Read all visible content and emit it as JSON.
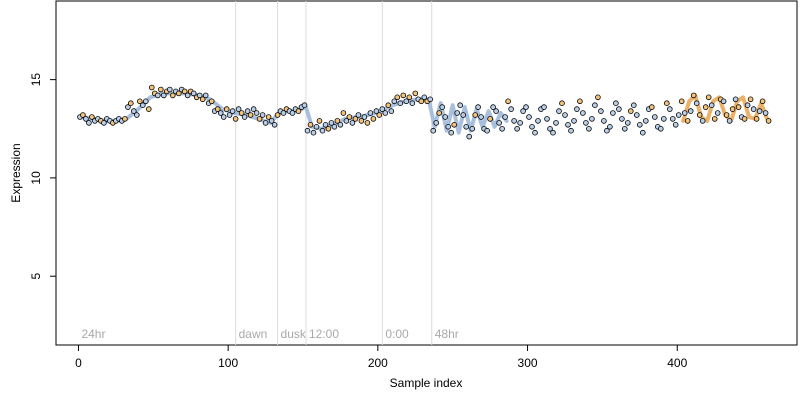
{
  "chart_data": {
    "type": "scatter",
    "title": "",
    "xlabel": "Sample index",
    "ylabel": "Expression",
    "xlim": [
      -15,
      480
    ],
    "ylim": [
      1.5,
      19
    ],
    "x_ticks": [
      0,
      100,
      200,
      300,
      400
    ],
    "y_ticks": [
      5,
      10,
      15
    ],
    "grid": false,
    "legend": "none",
    "colors": {
      "point_outline": "#000000",
      "point_fill_blue": "#b9cfe8",
      "point_fill_orange": "#f5c27a",
      "fit_line_blue": "#9fb8d9",
      "fit_line_orange": "#e8a95a",
      "annotation_line": "#dcdcdc",
      "annotation_text": "#a9a9a9"
    },
    "annotations": [
      {
        "x": 0,
        "label": "24hr",
        "line": false
      },
      {
        "x": 105,
        "label": "dawn",
        "line": true
      },
      {
        "x": 133,
        "label": "dusk",
        "line": true
      },
      {
        "x": 152,
        "label": "12:00",
        "line": true
      },
      {
        "x": 203,
        "label": "0:00",
        "line": true
      },
      {
        "x": 236,
        "label": "48hr",
        "line": true
      }
    ],
    "series": [
      {
        "label": "fitted-blue",
        "kind": "line",
        "color": "#9fb8d9",
        "x": [
          2,
          10,
          18,
          25,
          32,
          40,
          48,
          56,
          64,
          72,
          80,
          88,
          96,
          104,
          112,
          120,
          128,
          134,
          140,
          146,
          152,
          156,
          162,
          170,
          178,
          186,
          194,
          202,
          210,
          218,
          226,
          234,
          238,
          242,
          246,
          250,
          254,
          258,
          262,
          266,
          270,
          274,
          278,
          282,
          286
        ],
        "y": [
          13.1,
          13.0,
          12.9,
          12.9,
          13.0,
          13.5,
          14.1,
          14.3,
          14.3,
          14.3,
          14.2,
          14.0,
          13.5,
          13.3,
          13.2,
          13.0,
          12.8,
          13.3,
          13.4,
          13.4,
          13.6,
          12.6,
          12.5,
          12.7,
          13.0,
          13.1,
          13.2,
          13.4,
          13.7,
          13.9,
          14.0,
          14.0,
          12.6,
          13.8,
          12.4,
          13.7,
          12.3,
          13.6,
          12.4,
          13.5,
          12.6,
          13.4,
          12.6,
          13.3,
          12.9
        ]
      },
      {
        "label": "fitted-orange",
        "kind": "line",
        "color": "#e8a95a",
        "x": [
          404,
          408,
          412,
          416,
          420,
          424,
          428,
          432,
          436,
          440,
          444,
          448,
          452,
          456,
          460
        ],
        "y": [
          12.9,
          13.9,
          14.2,
          13.1,
          12.9,
          13.9,
          14.1,
          13.2,
          12.9,
          13.9,
          14.1,
          13.1,
          13.0,
          13.8,
          13.0
        ]
      }
    ],
    "points": [
      {
        "x": 1,
        "y": 13.1,
        "c": "b"
      },
      {
        "x": 3,
        "y": 13.2,
        "c": "o"
      },
      {
        "x": 5,
        "y": 13.0,
        "c": "b"
      },
      {
        "x": 7,
        "y": 12.8,
        "c": "b"
      },
      {
        "x": 9,
        "y": 13.1,
        "c": "o"
      },
      {
        "x": 11,
        "y": 12.9,
        "c": "b"
      },
      {
        "x": 13,
        "y": 13.0,
        "c": "b"
      },
      {
        "x": 15,
        "y": 12.9,
        "c": "o"
      },
      {
        "x": 17,
        "y": 12.8,
        "c": "b"
      },
      {
        "x": 19,
        "y": 13.0,
        "c": "b"
      },
      {
        "x": 21,
        "y": 12.9,
        "c": "b"
      },
      {
        "x": 23,
        "y": 12.8,
        "c": "o"
      },
      {
        "x": 25,
        "y": 12.9,
        "c": "b"
      },
      {
        "x": 27,
        "y": 13.0,
        "c": "b"
      },
      {
        "x": 29,
        "y": 12.9,
        "c": "b"
      },
      {
        "x": 31,
        "y": 13.0,
        "c": "o"
      },
      {
        "x": 33,
        "y": 13.6,
        "c": "b"
      },
      {
        "x": 35,
        "y": 13.8,
        "c": "o"
      },
      {
        "x": 37,
        "y": 13.4,
        "c": "b"
      },
      {
        "x": 39,
        "y": 13.2,
        "c": "b"
      },
      {
        "x": 41,
        "y": 13.9,
        "c": "o"
      },
      {
        "x": 43,
        "y": 13.7,
        "c": "b"
      },
      {
        "x": 45,
        "y": 13.9,
        "c": "b"
      },
      {
        "x": 47,
        "y": 13.5,
        "c": "o"
      },
      {
        "x": 49,
        "y": 14.6,
        "c": "o"
      },
      {
        "x": 51,
        "y": 14.3,
        "c": "o"
      },
      {
        "x": 53,
        "y": 14.2,
        "c": "b"
      },
      {
        "x": 55,
        "y": 14.5,
        "c": "o"
      },
      {
        "x": 57,
        "y": 14.2,
        "c": "b"
      },
      {
        "x": 59,
        "y": 14.4,
        "c": "o"
      },
      {
        "x": 61,
        "y": 14.5,
        "c": "b"
      },
      {
        "x": 63,
        "y": 14.2,
        "c": "o"
      },
      {
        "x": 65,
        "y": 14.4,
        "c": "b"
      },
      {
        "x": 67,
        "y": 14.3,
        "c": "o"
      },
      {
        "x": 69,
        "y": 14.5,
        "c": "b"
      },
      {
        "x": 71,
        "y": 14.4,
        "c": "o"
      },
      {
        "x": 73,
        "y": 14.2,
        "c": "b"
      },
      {
        "x": 75,
        "y": 14.4,
        "c": "o"
      },
      {
        "x": 77,
        "y": 14.3,
        "c": "b"
      },
      {
        "x": 79,
        "y": 14.1,
        "c": "o"
      },
      {
        "x": 81,
        "y": 14.2,
        "c": "b"
      },
      {
        "x": 83,
        "y": 14.0,
        "c": "o"
      },
      {
        "x": 85,
        "y": 14.2,
        "c": "b"
      },
      {
        "x": 87,
        "y": 13.8,
        "c": "b"
      },
      {
        "x": 89,
        "y": 13.9,
        "c": "o"
      },
      {
        "x": 91,
        "y": 13.4,
        "c": "b"
      },
      {
        "x": 93,
        "y": 13.5,
        "c": "o"
      },
      {
        "x": 95,
        "y": 13.3,
        "c": "b"
      },
      {
        "x": 97,
        "y": 13.1,
        "c": "b"
      },
      {
        "x": 99,
        "y": 13.5,
        "c": "o"
      },
      {
        "x": 101,
        "y": 13.2,
        "c": "b"
      },
      {
        "x": 103,
        "y": 13.4,
        "c": "b"
      },
      {
        "x": 105,
        "y": 13.0,
        "c": "o"
      },
      {
        "x": 107,
        "y": 13.5,
        "c": "b"
      },
      {
        "x": 109,
        "y": 13.3,
        "c": "o"
      },
      {
        "x": 111,
        "y": 13.1,
        "c": "b"
      },
      {
        "x": 113,
        "y": 13.4,
        "c": "b"
      },
      {
        "x": 115,
        "y": 13.2,
        "c": "o"
      },
      {
        "x": 117,
        "y": 13.5,
        "c": "b"
      },
      {
        "x": 119,
        "y": 13.3,
        "c": "b"
      },
      {
        "x": 121,
        "y": 13.0,
        "c": "o"
      },
      {
        "x": 123,
        "y": 13.2,
        "c": "b"
      },
      {
        "x": 125,
        "y": 12.8,
        "c": "b"
      },
      {
        "x": 127,
        "y": 13.1,
        "c": "o"
      },
      {
        "x": 129,
        "y": 12.9,
        "c": "b"
      },
      {
        "x": 131,
        "y": 12.7,
        "c": "b"
      },
      {
        "x": 133,
        "y": 13.2,
        "c": "o"
      },
      {
        "x": 135,
        "y": 13.4,
        "c": "b"
      },
      {
        "x": 137,
        "y": 13.3,
        "c": "b"
      },
      {
        "x": 139,
        "y": 13.5,
        "c": "o"
      },
      {
        "x": 141,
        "y": 13.4,
        "c": "b"
      },
      {
        "x": 143,
        "y": 13.3,
        "c": "b"
      },
      {
        "x": 145,
        "y": 13.5,
        "c": "b"
      },
      {
        "x": 147,
        "y": 13.4,
        "c": "o"
      },
      {
        "x": 149,
        "y": 13.6,
        "c": "b"
      },
      {
        "x": 151,
        "y": 13.7,
        "c": "b"
      },
      {
        "x": 153,
        "y": 12.4,
        "c": "b"
      },
      {
        "x": 155,
        "y": 12.7,
        "c": "o"
      },
      {
        "x": 157,
        "y": 12.3,
        "c": "b"
      },
      {
        "x": 159,
        "y": 12.6,
        "c": "b"
      },
      {
        "x": 161,
        "y": 12.9,
        "c": "o"
      },
      {
        "x": 163,
        "y": 12.4,
        "c": "b"
      },
      {
        "x": 165,
        "y": 12.7,
        "c": "b"
      },
      {
        "x": 167,
        "y": 12.5,
        "c": "o"
      },
      {
        "x": 169,
        "y": 12.8,
        "c": "b"
      },
      {
        "x": 171,
        "y": 12.6,
        "c": "b"
      },
      {
        "x": 173,
        "y": 12.9,
        "c": "o"
      },
      {
        "x": 175,
        "y": 12.7,
        "c": "b"
      },
      {
        "x": 177,
        "y": 13.3,
        "c": "o"
      },
      {
        "x": 179,
        "y": 12.9,
        "c": "b"
      },
      {
        "x": 181,
        "y": 13.1,
        "c": "o"
      },
      {
        "x": 183,
        "y": 12.8,
        "c": "b"
      },
      {
        "x": 185,
        "y": 13.0,
        "c": "o"
      },
      {
        "x": 187,
        "y": 13.2,
        "c": "b"
      },
      {
        "x": 189,
        "y": 12.9,
        "c": "o"
      },
      {
        "x": 191,
        "y": 13.1,
        "c": "b"
      },
      {
        "x": 193,
        "y": 12.8,
        "c": "o"
      },
      {
        "x": 195,
        "y": 13.3,
        "c": "b"
      },
      {
        "x": 197,
        "y": 13.0,
        "c": "o"
      },
      {
        "x": 199,
        "y": 13.4,
        "c": "b"
      },
      {
        "x": 201,
        "y": 13.2,
        "c": "o"
      },
      {
        "x": 203,
        "y": 13.5,
        "c": "b"
      },
      {
        "x": 205,
        "y": 13.3,
        "c": "b"
      },
      {
        "x": 207,
        "y": 13.7,
        "c": "o"
      },
      {
        "x": 209,
        "y": 13.4,
        "c": "b"
      },
      {
        "x": 211,
        "y": 13.9,
        "c": "b"
      },
      {
        "x": 213,
        "y": 14.1,
        "c": "o"
      },
      {
        "x": 215,
        "y": 13.8,
        "c": "b"
      },
      {
        "x": 217,
        "y": 14.2,
        "c": "o"
      },
      {
        "x": 219,
        "y": 13.9,
        "c": "b"
      },
      {
        "x": 221,
        "y": 14.1,
        "c": "o"
      },
      {
        "x": 223,
        "y": 13.8,
        "c": "b"
      },
      {
        "x": 225,
        "y": 14.3,
        "c": "o"
      },
      {
        "x": 227,
        "y": 14.0,
        "c": "b"
      },
      {
        "x": 229,
        "y": 13.9,
        "c": "o"
      },
      {
        "x": 231,
        "y": 14.1,
        "c": "b"
      },
      {
        "x": 233,
        "y": 13.9,
        "c": "o"
      },
      {
        "x": 235,
        "y": 14.0,
        "c": "b"
      },
      {
        "x": 237,
        "y": 12.4,
        "c": "b"
      },
      {
        "x": 239,
        "y": 12.8,
        "c": "b"
      },
      {
        "x": 241,
        "y": 13.3,
        "c": "o"
      },
      {
        "x": 243,
        "y": 13.6,
        "c": "b"
      },
      {
        "x": 245,
        "y": 13.1,
        "c": "b"
      },
      {
        "x": 247,
        "y": 12.6,
        "c": "b"
      },
      {
        "x": 249,
        "y": 12.3,
        "c": "b"
      },
      {
        "x": 251,
        "y": 12.7,
        "c": "o"
      },
      {
        "x": 253,
        "y": 13.3,
        "c": "b"
      },
      {
        "x": 255,
        "y": 13.7,
        "c": "b"
      },
      {
        "x": 257,
        "y": 13.2,
        "c": "b"
      },
      {
        "x": 259,
        "y": 12.6,
        "c": "b"
      },
      {
        "x": 261,
        "y": 12.1,
        "c": "b"
      },
      {
        "x": 263,
        "y": 12.5,
        "c": "b"
      },
      {
        "x": 265,
        "y": 13.2,
        "c": "o"
      },
      {
        "x": 267,
        "y": 13.6,
        "c": "b"
      },
      {
        "x": 269,
        "y": 13.1,
        "c": "b"
      },
      {
        "x": 271,
        "y": 12.5,
        "c": "b"
      },
      {
        "x": 273,
        "y": 12.4,
        "c": "b"
      },
      {
        "x": 275,
        "y": 13.0,
        "c": "o"
      },
      {
        "x": 277,
        "y": 13.6,
        "c": "b"
      },
      {
        "x": 279,
        "y": 13.4,
        "c": "b"
      },
      {
        "x": 281,
        "y": 12.8,
        "c": "b"
      },
      {
        "x": 283,
        "y": 12.5,
        "c": "b"
      },
      {
        "x": 285,
        "y": 13.1,
        "c": "b"
      },
      {
        "x": 287,
        "y": 13.9,
        "c": "o"
      },
      {
        "x": 289,
        "y": 13.5,
        "c": "b"
      },
      {
        "x": 291,
        "y": 12.9,
        "c": "b"
      },
      {
        "x": 293,
        "y": 12.5,
        "c": "b"
      },
      {
        "x": 295,
        "y": 12.8,
        "c": "b"
      },
      {
        "x": 297,
        "y": 13.4,
        "c": "b"
      },
      {
        "x": 299,
        "y": 13.6,
        "c": "b"
      },
      {
        "x": 301,
        "y": 13.1,
        "c": "b"
      },
      {
        "x": 303,
        "y": 12.6,
        "c": "b"
      },
      {
        "x": 305,
        "y": 12.3,
        "c": "b"
      },
      {
        "x": 307,
        "y": 12.9,
        "c": "b"
      },
      {
        "x": 309,
        "y": 13.5,
        "c": "b"
      },
      {
        "x": 311,
        "y": 13.6,
        "c": "b"
      },
      {
        "x": 313,
        "y": 13.0,
        "c": "b"
      },
      {
        "x": 315,
        "y": 12.5,
        "c": "b"
      },
      {
        "x": 317,
        "y": 12.3,
        "c": "b"
      },
      {
        "x": 319,
        "y": 12.8,
        "c": "b"
      },
      {
        "x": 321,
        "y": 13.4,
        "c": "b"
      },
      {
        "x": 323,
        "y": 13.8,
        "c": "o"
      },
      {
        "x": 325,
        "y": 13.2,
        "c": "b"
      },
      {
        "x": 327,
        "y": 12.7,
        "c": "b"
      },
      {
        "x": 329,
        "y": 12.4,
        "c": "b"
      },
      {
        "x": 331,
        "y": 12.9,
        "c": "b"
      },
      {
        "x": 333,
        "y": 13.5,
        "c": "b"
      },
      {
        "x": 335,
        "y": 13.9,
        "c": "o"
      },
      {
        "x": 337,
        "y": 13.3,
        "c": "b"
      },
      {
        "x": 339,
        "y": 12.8,
        "c": "b"
      },
      {
        "x": 341,
        "y": 12.5,
        "c": "b"
      },
      {
        "x": 343,
        "y": 13.0,
        "c": "b"
      },
      {
        "x": 345,
        "y": 13.7,
        "c": "b"
      },
      {
        "x": 347,
        "y": 14.1,
        "c": "o"
      },
      {
        "x": 349,
        "y": 13.4,
        "c": "b"
      },
      {
        "x": 351,
        "y": 12.9,
        "c": "b"
      },
      {
        "x": 353,
        "y": 12.4,
        "c": "b"
      },
      {
        "x": 355,
        "y": 12.6,
        "c": "b"
      },
      {
        "x": 357,
        "y": 13.3,
        "c": "b"
      },
      {
        "x": 359,
        "y": 13.8,
        "c": "b"
      },
      {
        "x": 361,
        "y": 13.5,
        "c": "b"
      },
      {
        "x": 363,
        "y": 13.0,
        "c": "b"
      },
      {
        "x": 365,
        "y": 12.5,
        "c": "b"
      },
      {
        "x": 367,
        "y": 12.8,
        "c": "b"
      },
      {
        "x": 369,
        "y": 13.4,
        "c": "o"
      },
      {
        "x": 371,
        "y": 13.7,
        "c": "b"
      },
      {
        "x": 373,
        "y": 13.2,
        "c": "b"
      },
      {
        "x": 375,
        "y": 12.7,
        "c": "b"
      },
      {
        "x": 377,
        "y": 12.3,
        "c": "b"
      },
      {
        "x": 379,
        "y": 12.9,
        "c": "b"
      },
      {
        "x": 381,
        "y": 13.5,
        "c": "b"
      },
      {
        "x": 383,
        "y": 13.6,
        "c": "o"
      },
      {
        "x": 385,
        "y": 13.1,
        "c": "b"
      },
      {
        "x": 387,
        "y": 12.6,
        "c": "b"
      },
      {
        "x": 389,
        "y": 12.5,
        "c": "b"
      },
      {
        "x": 391,
        "y": 13.0,
        "c": "b"
      },
      {
        "x": 393,
        "y": 13.8,
        "c": "o"
      },
      {
        "x": 395,
        "y": 13.5,
        "c": "b"
      },
      {
        "x": 397,
        "y": 13.0,
        "c": "b"
      },
      {
        "x": 399,
        "y": 12.7,
        "c": "b"
      },
      {
        "x": 401,
        "y": 13.2,
        "c": "b"
      },
      {
        "x": 403,
        "y": 13.9,
        "c": "o"
      },
      {
        "x": 405,
        "y": 13.3,
        "c": "b"
      },
      {
        "x": 407,
        "y": 12.9,
        "c": "o"
      },
      {
        "x": 409,
        "y": 13.4,
        "c": "b"
      },
      {
        "x": 411,
        "y": 14.2,
        "c": "o"
      },
      {
        "x": 413,
        "y": 13.8,
        "c": "b"
      },
      {
        "x": 415,
        "y": 13.2,
        "c": "o"
      },
      {
        "x": 417,
        "y": 12.9,
        "c": "b"
      },
      {
        "x": 419,
        "y": 13.6,
        "c": "o"
      },
      {
        "x": 421,
        "y": 14.1,
        "c": "o"
      },
      {
        "x": 423,
        "y": 13.7,
        "c": "b"
      },
      {
        "x": 425,
        "y": 13.0,
        "c": "o"
      },
      {
        "x": 427,
        "y": 13.3,
        "c": "b"
      },
      {
        "x": 429,
        "y": 14.0,
        "c": "o"
      },
      {
        "x": 431,
        "y": 13.9,
        "c": "b"
      },
      {
        "x": 433,
        "y": 13.2,
        "c": "o"
      },
      {
        "x": 435,
        "y": 12.9,
        "c": "b"
      },
      {
        "x": 437,
        "y": 13.5,
        "c": "o"
      },
      {
        "x": 439,
        "y": 14.0,
        "c": "b"
      },
      {
        "x": 441,
        "y": 13.6,
        "c": "o"
      },
      {
        "x": 443,
        "y": 13.1,
        "c": "b"
      },
      {
        "x": 445,
        "y": 13.0,
        "c": "o"
      },
      {
        "x": 447,
        "y": 13.7,
        "c": "b"
      },
      {
        "x": 449,
        "y": 14.0,
        "c": "o"
      },
      {
        "x": 451,
        "y": 13.5,
        "c": "b"
      },
      {
        "x": 453,
        "y": 13.0,
        "c": "o"
      },
      {
        "x": 455,
        "y": 13.4,
        "c": "b"
      },
      {
        "x": 457,
        "y": 13.9,
        "c": "o"
      },
      {
        "x": 459,
        "y": 13.3,
        "c": "b"
      },
      {
        "x": 461,
        "y": 12.9,
        "c": "o"
      }
    ]
  }
}
